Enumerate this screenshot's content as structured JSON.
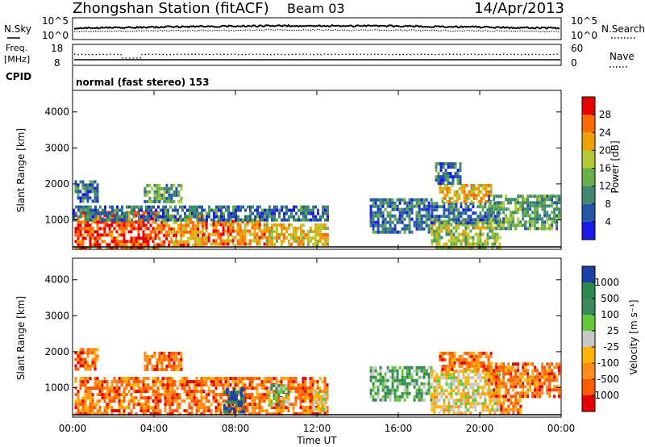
{
  "header": {
    "station": "Zhongshan Station (fitACF)",
    "beam": "Beam 03",
    "date": "14/Apr/2013"
  },
  "nsky_panel": {
    "left_label": "N.Sky",
    "left_ticks": [
      "10^5",
      "10^0"
    ],
    "right_label": "N.Search",
    "right_ticks": [
      "10^5",
      "10^0"
    ]
  },
  "freq_panel": {
    "left_label_line1": "Freq.",
    "left_label_line2": "[MHz]",
    "left_ticks": [
      "18",
      "8"
    ],
    "right_label": "Nave",
    "right_ticks": [
      "60",
      "0"
    ]
  },
  "cpid_panel": {
    "label": "CPID",
    "mode_text": "normal (fast stereo) 153"
  },
  "chart_data": [
    {
      "type": "heatmap",
      "title": "",
      "xlabel": "Time UT",
      "ylabel": "Slant Range [km]",
      "xlim_hours": [
        0,
        24
      ],
      "ylim": [
        180,
        4600
      ],
      "x_tick_labels": [
        "00:00",
        "04:00",
        "08:00",
        "12:00",
        "16:00",
        "20:00",
        "00:00"
      ],
      "y_tick_labels": [
        "1000",
        "2000",
        "3000",
        "4000"
      ],
      "colorbar_label": "Power [dB]",
      "colorbar_ticks": [
        "28",
        "24",
        "20",
        "16",
        "12",
        "8",
        "4"
      ],
      "colorbar_range": [
        0,
        32
      ],
      "colors": [
        "#1a1ae6",
        "#2455a8",
        "#3f8a6e",
        "#6ab04a",
        "#b3c832",
        "#f0a000",
        "#ff6a00",
        "#e60000"
      ],
      "blobs": [
        {
          "t0": 0.1,
          "t1": 4.2,
          "r0": 220,
          "r1": 1250,
          "level": 7
        },
        {
          "t0": 4.2,
          "t1": 6.4,
          "r0": 300,
          "r1": 1150,
          "level": 6
        },
        {
          "t0": 6.4,
          "t1": 9.5,
          "r0": 300,
          "r1": 1000,
          "level": 6
        },
        {
          "t0": 9.5,
          "t1": 12.5,
          "r0": 300,
          "r1": 900,
          "level": 5
        },
        {
          "t0": 0.0,
          "t1": 12.5,
          "r0": 1000,
          "r1": 1400,
          "level": 2
        },
        {
          "t0": 0.1,
          "t1": 1.2,
          "r0": 1550,
          "r1": 2100,
          "level": 2
        },
        {
          "t0": 3.5,
          "t1": 5.3,
          "r0": 1500,
          "r1": 2000,
          "level": 3
        },
        {
          "t0": 14.6,
          "t1": 17.6,
          "r0": 700,
          "r1": 1600,
          "level": 2
        },
        {
          "t0": 17.6,
          "t1": 21.0,
          "r0": 250,
          "r1": 1000,
          "level": 4
        },
        {
          "t0": 17.6,
          "t1": 21.0,
          "r0": 900,
          "r1": 1500,
          "level": 2
        },
        {
          "t0": 18.0,
          "t1": 20.5,
          "r0": 1500,
          "r1": 2000,
          "level": 5
        },
        {
          "t0": 20.4,
          "t1": 23.9,
          "r0": 800,
          "r1": 1700,
          "level": 3
        },
        {
          "t0": 17.8,
          "t1": 19.0,
          "r0": 2050,
          "r1": 2600,
          "level": 2
        }
      ]
    },
    {
      "type": "heatmap",
      "title": "",
      "xlabel": "Time UT",
      "ylabel": "Slant Range [km]",
      "xlim_hours": [
        0,
        24
      ],
      "ylim": [
        180,
        4600
      ],
      "x_tick_labels": [
        "00:00",
        "04:00",
        "08:00",
        "12:00",
        "16:00",
        "20:00",
        "00:00"
      ],
      "y_tick_labels": [
        "1000",
        "2000",
        "3000",
        "4000"
      ],
      "colorbar_label": "Velocity [m s⁻¹]",
      "colorbar_ticks": [
        "1000",
        "500",
        "100",
        "25",
        "-25",
        "-100",
        "-500",
        "-1000"
      ],
      "colorbar_range": [
        -1200,
        1200
      ],
      "colors": [
        "#e60000",
        "#ff5a00",
        "#ff8c1a",
        "#ffb400",
        "#c8c8c8",
        "#62c93a",
        "#3a8a5a",
        "#2a8a4a",
        "#1e3ea8"
      ],
      "blobs": [
        {
          "t0": 0.1,
          "t1": 12.5,
          "r0": 250,
          "r1": 1300,
          "level": 2
        },
        {
          "t0": 0.1,
          "t1": 1.2,
          "r0": 1550,
          "r1": 2100,
          "level": 2
        },
        {
          "t0": 3.5,
          "t1": 5.3,
          "r0": 1500,
          "r1": 2000,
          "level": 2
        },
        {
          "t0": 7.4,
          "t1": 8.4,
          "r0": 300,
          "r1": 1000,
          "level": 8
        },
        {
          "t0": 9.6,
          "t1": 10.6,
          "r0": 500,
          "r1": 1100,
          "level": 5
        },
        {
          "t0": 11.8,
          "t1": 12.5,
          "r0": 400,
          "r1": 900,
          "level": 4
        },
        {
          "t0": 14.6,
          "t1": 17.6,
          "r0": 700,
          "r1": 1600,
          "level": 6
        },
        {
          "t0": 17.6,
          "t1": 21.0,
          "r0": 250,
          "r1": 1500,
          "level": 4
        },
        {
          "t0": 18.0,
          "t1": 20.5,
          "r0": 1500,
          "r1": 2000,
          "level": 2
        },
        {
          "t0": 20.4,
          "t1": 23.9,
          "r0": 800,
          "r1": 1700,
          "level": 2
        },
        {
          "t0": 21.0,
          "t1": 22.0,
          "r0": 300,
          "r1": 700,
          "level": 2
        }
      ]
    }
  ]
}
